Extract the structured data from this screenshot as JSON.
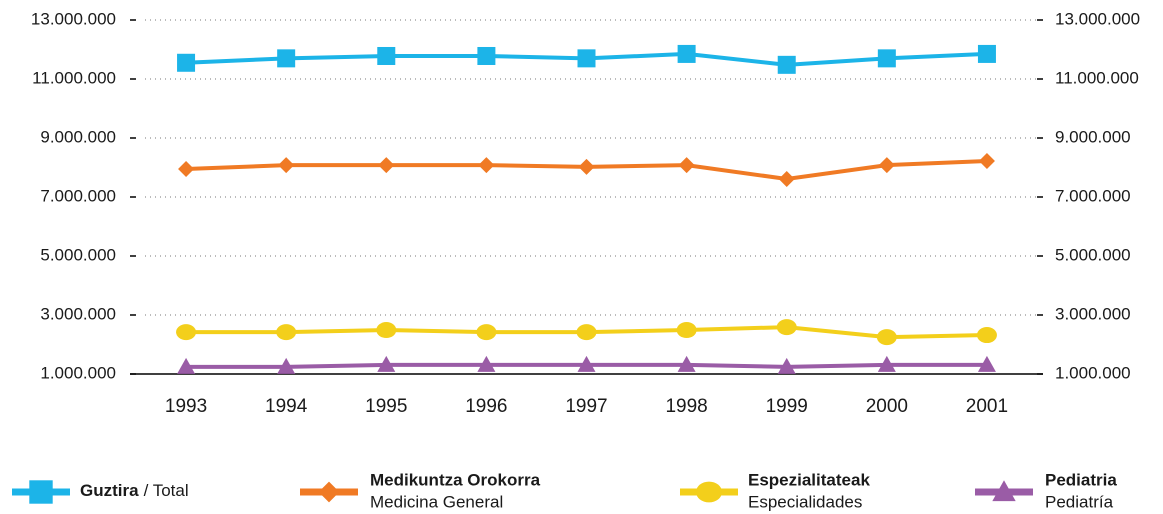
{
  "chart_data": {
    "type": "line",
    "categories": [
      "1993",
      "1994",
      "1995",
      "1996",
      "1997",
      "1998",
      "1999",
      "2000",
      "2001"
    ],
    "ylim": [
      1000000,
      13000000
    ],
    "yticks": [
      {
        "value": 1000000,
        "label": "1.000.000"
      },
      {
        "value": 3000000,
        "label": "3.000.000"
      },
      {
        "value": 5000000,
        "label": "5.000.000"
      },
      {
        "value": 7000000,
        "label": "7.000.000"
      },
      {
        "value": 9000000,
        "label": "9.000.000"
      },
      {
        "value": 11000000,
        "label": "11.000.000"
      },
      {
        "value": 13000000,
        "label": "13.000.000"
      }
    ],
    "y2lim": [
      1000000,
      13000000
    ],
    "y2ticks": [
      {
        "value": 1000000,
        "label": "1.000.000"
      },
      {
        "value": 3000000,
        "label": "3.000.000"
      },
      {
        "value": 5000000,
        "label": "5.000.000"
      },
      {
        "value": 7000000,
        "label": "7.000.000"
      },
      {
        "value": 9000000,
        "label": "9.000.000"
      },
      {
        "value": 11000000,
        "label": "11.000.000"
      },
      {
        "value": 13000000,
        "label": "13.000.000"
      }
    ],
    "grid": true,
    "legend": "bottom",
    "series": [
      {
        "name": "Guztira",
        "name_secondary": "/ Total",
        "color": "#1cb4e8",
        "marker": "square",
        "values": [
          11550000,
          11700000,
          11780000,
          11780000,
          11700000,
          11850000,
          11480000,
          11700000,
          11850000
        ]
      },
      {
        "name": "Medikuntza Orokorra",
        "name_secondary": "Medicina General",
        "color": "#f07a24",
        "marker": "diamond",
        "values": [
          7950000,
          8080000,
          8080000,
          8080000,
          8020000,
          8080000,
          7610000,
          8080000,
          8220000
        ]
      },
      {
        "name": "Espezialitateak",
        "name_secondary": "Especialidades",
        "color": "#f3cf1b",
        "marker": "circle",
        "values": [
          2420000,
          2420000,
          2490000,
          2420000,
          2420000,
          2490000,
          2590000,
          2250000,
          2320000
        ]
      },
      {
        "name": "Pediatria",
        "name_secondary": "Pediatría",
        "color": "#9a5ca6",
        "marker": "triangle",
        "values": [
          1240000,
          1240000,
          1310000,
          1310000,
          1310000,
          1310000,
          1240000,
          1310000,
          1310000
        ]
      }
    ]
  }
}
